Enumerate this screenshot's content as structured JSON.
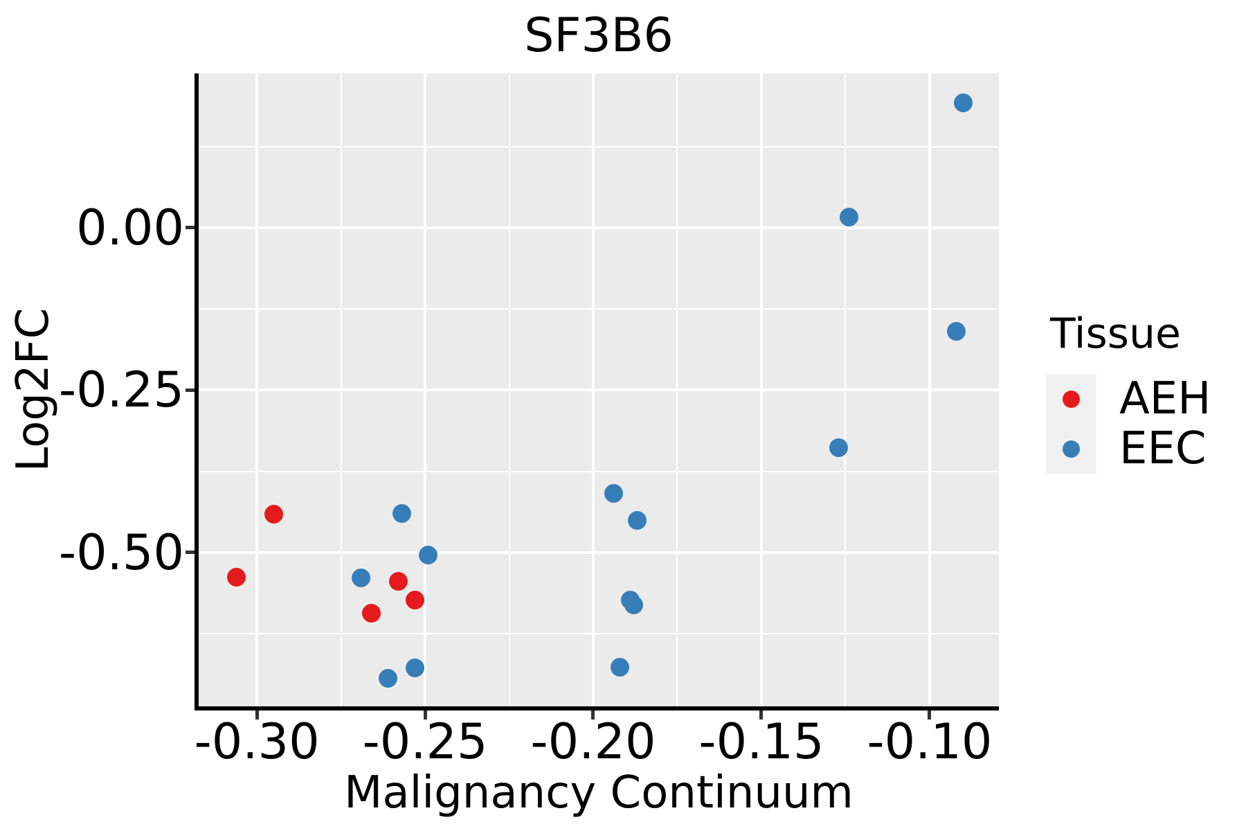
{
  "title": "SF3B6",
  "axes": {
    "x_label": "Malignancy Continuum",
    "y_label": "Log2FC"
  },
  "legend": {
    "title": "Tissue",
    "entries": [
      {
        "label": "AEH",
        "color": "#e41a1c"
      },
      {
        "label": "EEC",
        "color": "#377eb8"
      }
    ]
  },
  "colors": {
    "panel_background": "#ebebeb",
    "gridline": "#ffffff",
    "axis_line": "#000000",
    "tick_mark": "#333333",
    "legend_key_background": "#f0f0f0",
    "aeh_red": "#e41a1c",
    "eec_blue": "#377eb8"
  },
  "chart_data": {
    "type": "scatter",
    "title": "SF3B6",
    "xlabel": "Malignancy Continuum",
    "ylabel": "Log2FC",
    "xlim": [
      -0.3173,
      -0.0794
    ],
    "ylim": [
      -0.7367,
      0.2377
    ],
    "x_ticks": [
      -0.3,
      -0.25,
      -0.2,
      -0.15,
      -0.1
    ],
    "x_tick_labels": [
      "-0.30",
      "-0.25",
      "-0.20",
      "-0.15",
      "-0.10"
    ],
    "y_ticks": [
      0.0,
      -0.25,
      -0.5
    ],
    "y_tick_labels": [
      "0.00",
      "-0.25",
      "-0.50"
    ],
    "grid": "major+minor",
    "legend_position": "right",
    "series": [
      {
        "name": "AEH",
        "color": "#e41a1c",
        "points": [
          [
            -0.306,
            -0.538
          ],
          [
            -0.295,
            -0.441
          ],
          [
            -0.266,
            -0.593
          ],
          [
            -0.258,
            -0.544
          ],
          [
            -0.253,
            -0.573
          ]
        ]
      },
      {
        "name": "EEC",
        "color": "#377eb8",
        "points": [
          [
            -0.269,
            -0.539
          ],
          [
            -0.261,
            -0.694
          ],
          [
            -0.257,
            -0.44
          ],
          [
            -0.253,
            -0.677
          ],
          [
            -0.249,
            -0.504
          ],
          [
            -0.194,
            -0.409
          ],
          [
            -0.192,
            -0.676
          ],
          [
            -0.189,
            -0.573
          ],
          [
            -0.188,
            -0.581
          ],
          [
            -0.187,
            -0.45
          ],
          [
            -0.127,
            -0.338
          ],
          [
            -0.124,
            0.016
          ],
          [
            -0.092,
            -0.159
          ],
          [
            -0.09,
            0.192
          ]
        ]
      }
    ]
  }
}
